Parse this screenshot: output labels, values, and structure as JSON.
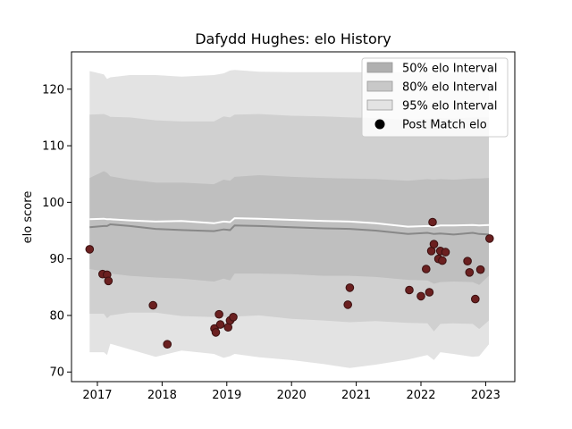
{
  "chart_data": {
    "type": "scatter",
    "title": "Dafydd Hughes: elo History",
    "xlabel": "",
    "ylabel": "elo score",
    "xlim": [
      2016.6,
      2023.45
    ],
    "ylim": [
      68.3,
      126.6
    ],
    "x_ticks": [
      2017,
      2018,
      2019,
      2020,
      2021,
      2022,
      2023
    ],
    "y_ticks": [
      70,
      80,
      90,
      100,
      110,
      120
    ],
    "legend_position": "top-right",
    "legend": [
      {
        "label": "50% elo Interval",
        "kind": "band",
        "color": "#b0b0b0"
      },
      {
        "label": "80% elo Interval",
        "kind": "band",
        "color": "#c8c8c8"
      },
      {
        "label": "95% elo Interval",
        "kind": "band",
        "color": "#e3e3e3"
      },
      {
        "label": "Post Match elo",
        "kind": "marker",
        "color": "#000000"
      }
    ],
    "colors": {
      "band50": "#bfbfbf",
      "band80": "#d0d0d0",
      "band95": "#e3e3e3",
      "mean_line": "#888888",
      "upper_line": "#ffffff",
      "point_fill": "#6b2020",
      "point_edge": "#3a1010"
    },
    "bands": {
      "x": [
        2016.88,
        2017.1,
        2017.15,
        2017.2,
        2017.5,
        2017.9,
        2018.3,
        2018.8,
        2018.95,
        2019.05,
        2019.12,
        2019.5,
        2020.0,
        2020.5,
        2020.9,
        2021.3,
        2021.8,
        2022.1,
        2022.2,
        2022.3,
        2022.5,
        2022.8,
        2022.9,
        2023.05
      ],
      "mean": [
        95.6,
        95.8,
        95.8,
        96.1,
        95.8,
        95.3,
        95.1,
        94.9,
        95.2,
        95.1,
        95.9,
        95.8,
        95.6,
        95.4,
        95.3,
        95.0,
        94.4,
        94.6,
        94.4,
        94.5,
        94.3,
        94.6,
        94.4,
        94.3
      ],
      "upper_line": [
        97.0,
        97.1,
        97.0,
        97.0,
        96.8,
        96.6,
        96.7,
        96.3,
        96.6,
        96.5,
        97.2,
        97.1,
        96.9,
        96.7,
        96.6,
        96.3,
        95.7,
        95.8,
        95.7,
        95.9,
        95.9,
        96.0,
        95.9,
        96.0
      ],
      "p50_upper": [
        104.3,
        105.5,
        105.2,
        104.6,
        104.0,
        103.5,
        103.5,
        103.2,
        104.0,
        103.8,
        104.5,
        104.8,
        104.5,
        104.3,
        104.2,
        104.1,
        103.8,
        104.1,
        104.0,
        104.1,
        104.0,
        104.2,
        104.2,
        104.3
      ],
      "p50_lower": [
        88.2,
        87.8,
        86.5,
        87.4,
        87.0,
        86.7,
        86.5,
        86.0,
        86.5,
        86.2,
        87.4,
        87.4,
        87.3,
        87.0,
        87.0,
        86.8,
        86.3,
        86.2,
        85.6,
        85.9,
        86.0,
        85.9,
        85.4,
        87.0
      ],
      "p80_upper": [
        115.5,
        115.6,
        115.4,
        115.1,
        115.0,
        114.5,
        114.3,
        114.3,
        115.2,
        115.0,
        115.5,
        115.6,
        115.3,
        115.2,
        115.0,
        114.9,
        114.6,
        114.8,
        114.8,
        114.9,
        114.8,
        115.0,
        115.0,
        115.0
      ],
      "p80_lower": [
        80.3,
        80.3,
        79.5,
        80.0,
        80.5,
        80.5,
        79.9,
        79.7,
        79.8,
        79.5,
        79.8,
        80.0,
        79.4,
        79.1,
        78.8,
        79.0,
        78.7,
        78.6,
        77.2,
        78.5,
        78.6,
        78.5,
        77.6,
        79.1
      ],
      "p95_upper": [
        123.2,
        122.6,
        121.8,
        122.1,
        122.5,
        122.5,
        122.2,
        122.5,
        122.8,
        123.3,
        123.4,
        123.1,
        123.0,
        123.0,
        123.0,
        123.0,
        123.0,
        123.0,
        122.9,
        123.0,
        122.9,
        123.0,
        123.0,
        123.0
      ],
      "p95_lower": [
        73.5,
        73.5,
        73.0,
        75.0,
        74.0,
        72.7,
        73.8,
        73.2,
        72.5,
        72.8,
        73.2,
        72.6,
        72.1,
        71.4,
        70.7,
        71.3,
        72.2,
        73.0,
        72.1,
        73.5,
        73.2,
        72.7,
        72.8,
        74.9
      ]
    },
    "points": [
      {
        "x": 2016.88,
        "y": 91.7
      },
      {
        "x": 2017.08,
        "y": 87.3
      },
      {
        "x": 2017.15,
        "y": 87.2
      },
      {
        "x": 2017.17,
        "y": 86.1
      },
      {
        "x": 2017.86,
        "y": 81.8
      },
      {
        "x": 2018.08,
        "y": 74.9
      },
      {
        "x": 2018.81,
        "y": 77.7
      },
      {
        "x": 2018.83,
        "y": 77.0
      },
      {
        "x": 2018.88,
        "y": 80.2
      },
      {
        "x": 2018.9,
        "y": 78.4
      },
      {
        "x": 2019.02,
        "y": 77.9
      },
      {
        "x": 2019.05,
        "y": 79.1
      },
      {
        "x": 2019.1,
        "y": 79.7
      },
      {
        "x": 2020.87,
        "y": 81.9
      },
      {
        "x": 2020.9,
        "y": 84.9
      },
      {
        "x": 2021.82,
        "y": 84.5
      },
      {
        "x": 2022.0,
        "y": 83.4
      },
      {
        "x": 2022.08,
        "y": 88.2
      },
      {
        "x": 2022.13,
        "y": 84.1
      },
      {
        "x": 2022.16,
        "y": 91.4
      },
      {
        "x": 2022.2,
        "y": 92.6
      },
      {
        "x": 2022.18,
        "y": 96.5
      },
      {
        "x": 2022.27,
        "y": 90.0
      },
      {
        "x": 2022.3,
        "y": 91.4
      },
      {
        "x": 2022.33,
        "y": 89.7
      },
      {
        "x": 2022.38,
        "y": 91.2
      },
      {
        "x": 2022.72,
        "y": 89.6
      },
      {
        "x": 2022.75,
        "y": 87.6
      },
      {
        "x": 2022.84,
        "y": 82.9
      },
      {
        "x": 2022.92,
        "y": 88.1
      },
      {
        "x": 2023.06,
        "y": 93.6
      }
    ]
  }
}
